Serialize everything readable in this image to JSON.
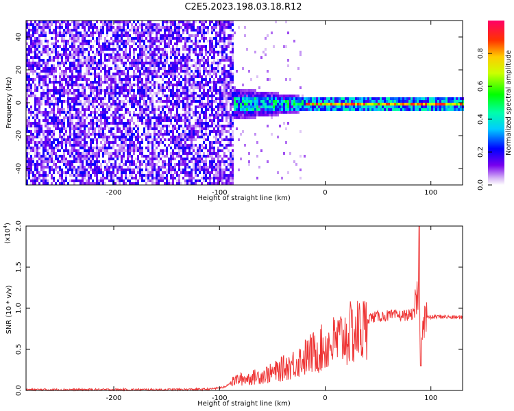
{
  "chart_data": [
    {
      "type": "heatmap",
      "title": "C2E5.2023.198.03.18.R12",
      "xlabel": "Height of straight line (km)",
      "ylabel": "Frequency (Hz)",
      "xlim": [
        -283,
        130
      ],
      "ylim": [
        -50,
        50
      ],
      "x_ticks": [
        "-200",
        "-100",
        "0",
        "100"
      ],
      "y_ticks": [
        "-40",
        "-20",
        "0",
        "20",
        "40"
      ],
      "colorbar": {
        "label": "Normalized spectral amplitude",
        "range": [
          0,
          1
        ],
        "ticks": [
          "0.0",
          "0.2",
          "0.4",
          "0.6",
          "0.8"
        ],
        "colormap": "gist_rainbow_r"
      },
      "description_regions": [
        {
          "x_range": [
            -283,
            -87
          ],
          "freq_range": [
            -50,
            50
          ],
          "amplitude_range": [
            0.05,
            0.25
          ]
        },
        {
          "x_range": [
            -90,
            -20
          ],
          "freq_range": [
            -12,
            12
          ],
          "amplitude_range": [
            0.1,
            0.5
          ]
        },
        {
          "x_range": [
            -20,
            130
          ],
          "freq_range": [
            -3,
            3
          ],
          "amplitude_range": [
            0.3,
            0.95
          ]
        }
      ]
    },
    {
      "type": "line",
      "xlabel": "Height of straight line (km)",
      "ylabel": "SNR (10 * v/v)",
      "y_multiplier_label": "(x10",
      "y_multiplier_exp": "4",
      "xlim": [
        -283,
        130
      ],
      "ylim": [
        0,
        20000
      ],
      "x_ticks": [
        "-200",
        "-100",
        "0",
        "100"
      ],
      "y_ticks": [
        "0.0",
        "0.5",
        "1.0",
        "1.5",
        "2.0"
      ],
      "series": [
        {
          "color": "#ee3333",
          "x": [
            -283,
            -250,
            -200,
            -150,
            -110,
            -95,
            -85,
            -70,
            -50,
            -30,
            -10,
            0,
            10,
            20,
            30,
            40,
            50,
            60,
            70,
            80,
            85,
            88,
            90,
            92,
            95,
            100,
            110,
            120,
            130
          ],
          "y": [
            100,
            100,
            100,
            100,
            150,
            400,
            1500,
            1800,
            2500,
            3800,
            5500,
            6200,
            7000,
            7800,
            8400,
            8800,
            9000,
            9100,
            9100,
            9200,
            9300,
            12000,
            5000,
            9400,
            8900,
            8900,
            9000,
            8900,
            8900
          ]
        }
      ]
    }
  ]
}
